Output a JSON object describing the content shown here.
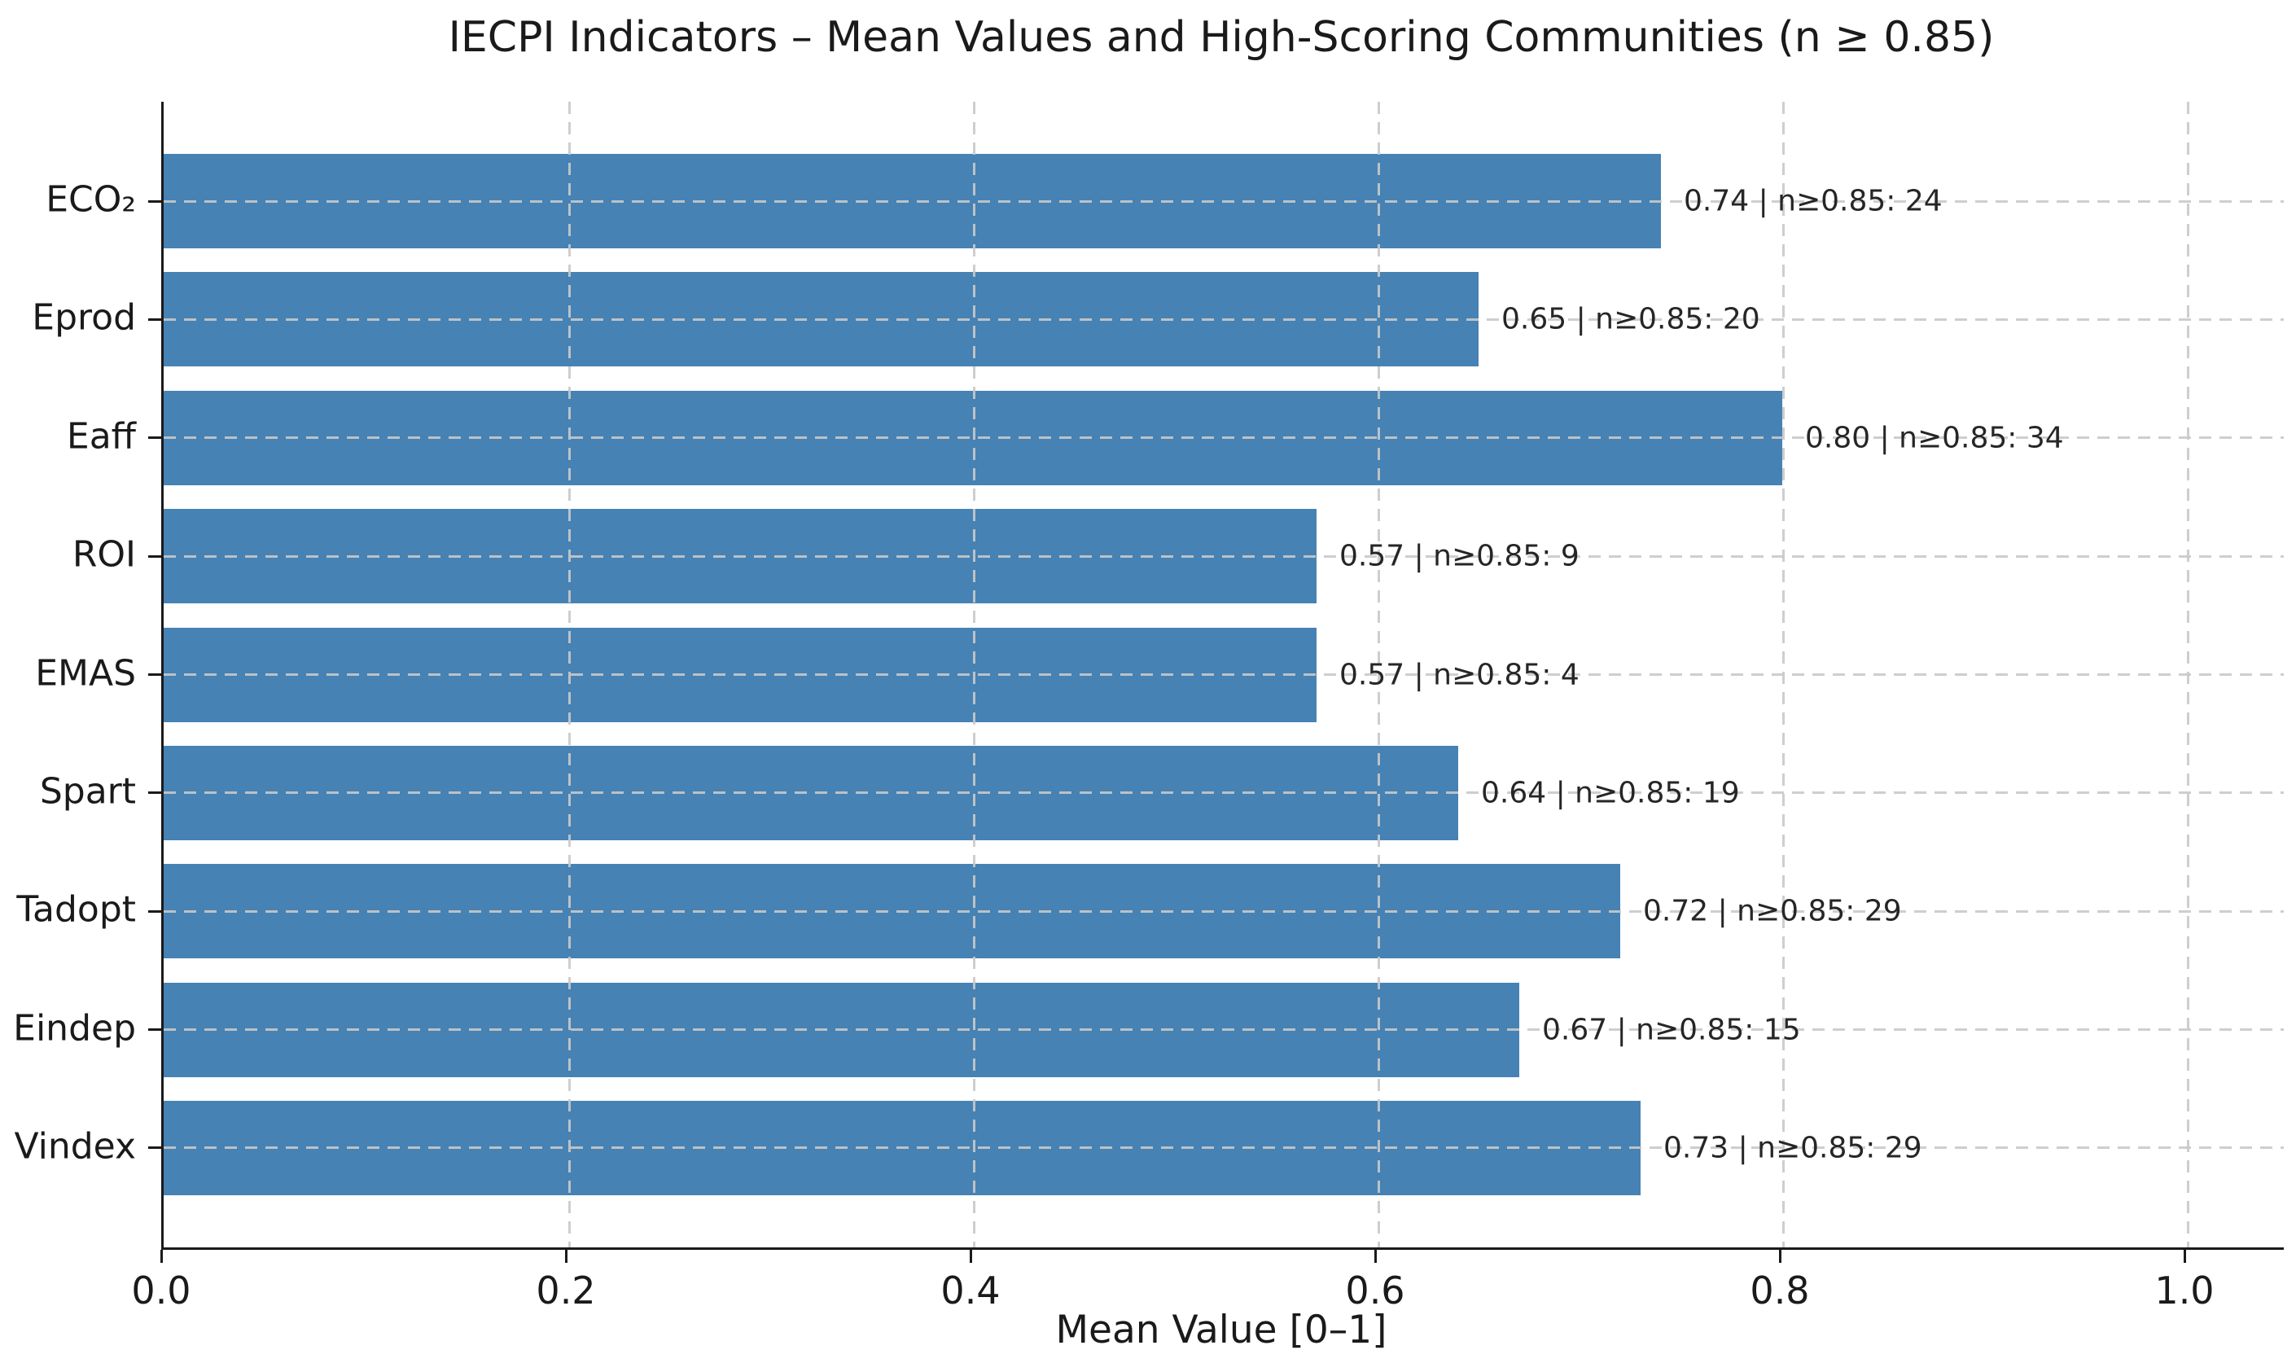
{
  "chart_data": {
    "type": "bar",
    "orientation": "horizontal",
    "title": "IECPI Indicators – Mean Values and High-Scoring Communities (n ≥ 0.85)",
    "xlabel": "Mean Value [0–1]",
    "ylabel": "",
    "categories": [
      "ECO₂",
      "Eprod",
      "Eaff",
      "ROI",
      "EMAS",
      "Spart",
      "Tadopt",
      "Eindep",
      "Vindex"
    ],
    "values": [
      0.74,
      0.65,
      0.8,
      0.57,
      0.57,
      0.64,
      0.72,
      0.67,
      0.73
    ],
    "high_scoring_counts": [
      24,
      20,
      34,
      9,
      4,
      19,
      29,
      15,
      29
    ],
    "bar_labels": [
      "0.74 | n≥0.85: 24",
      "0.65 | n≥0.85: 20",
      "0.80 | n≥0.85: 34",
      "0.57 | n≥0.85: 9",
      "0.57 | n≥0.85: 4",
      "0.64 | n≥0.85: 19",
      "0.72 | n≥0.85: 29",
      "0.67 | n≥0.85: 15",
      "0.73 | n≥0.85: 29"
    ],
    "x_ticks": [
      "0.0",
      "0.2",
      "0.4",
      "0.6",
      "0.8",
      "1.0"
    ],
    "x_tick_values": [
      0.0,
      0.2,
      0.4,
      0.6,
      0.8,
      1.0
    ],
    "xlim": [
      0,
      1.048
    ],
    "grid": true,
    "legend": false,
    "bar_color": "#4682b4",
    "grid_color": "#c9c9c9",
    "axis_color": "#1a1a1a",
    "label_color": "#262626"
  }
}
